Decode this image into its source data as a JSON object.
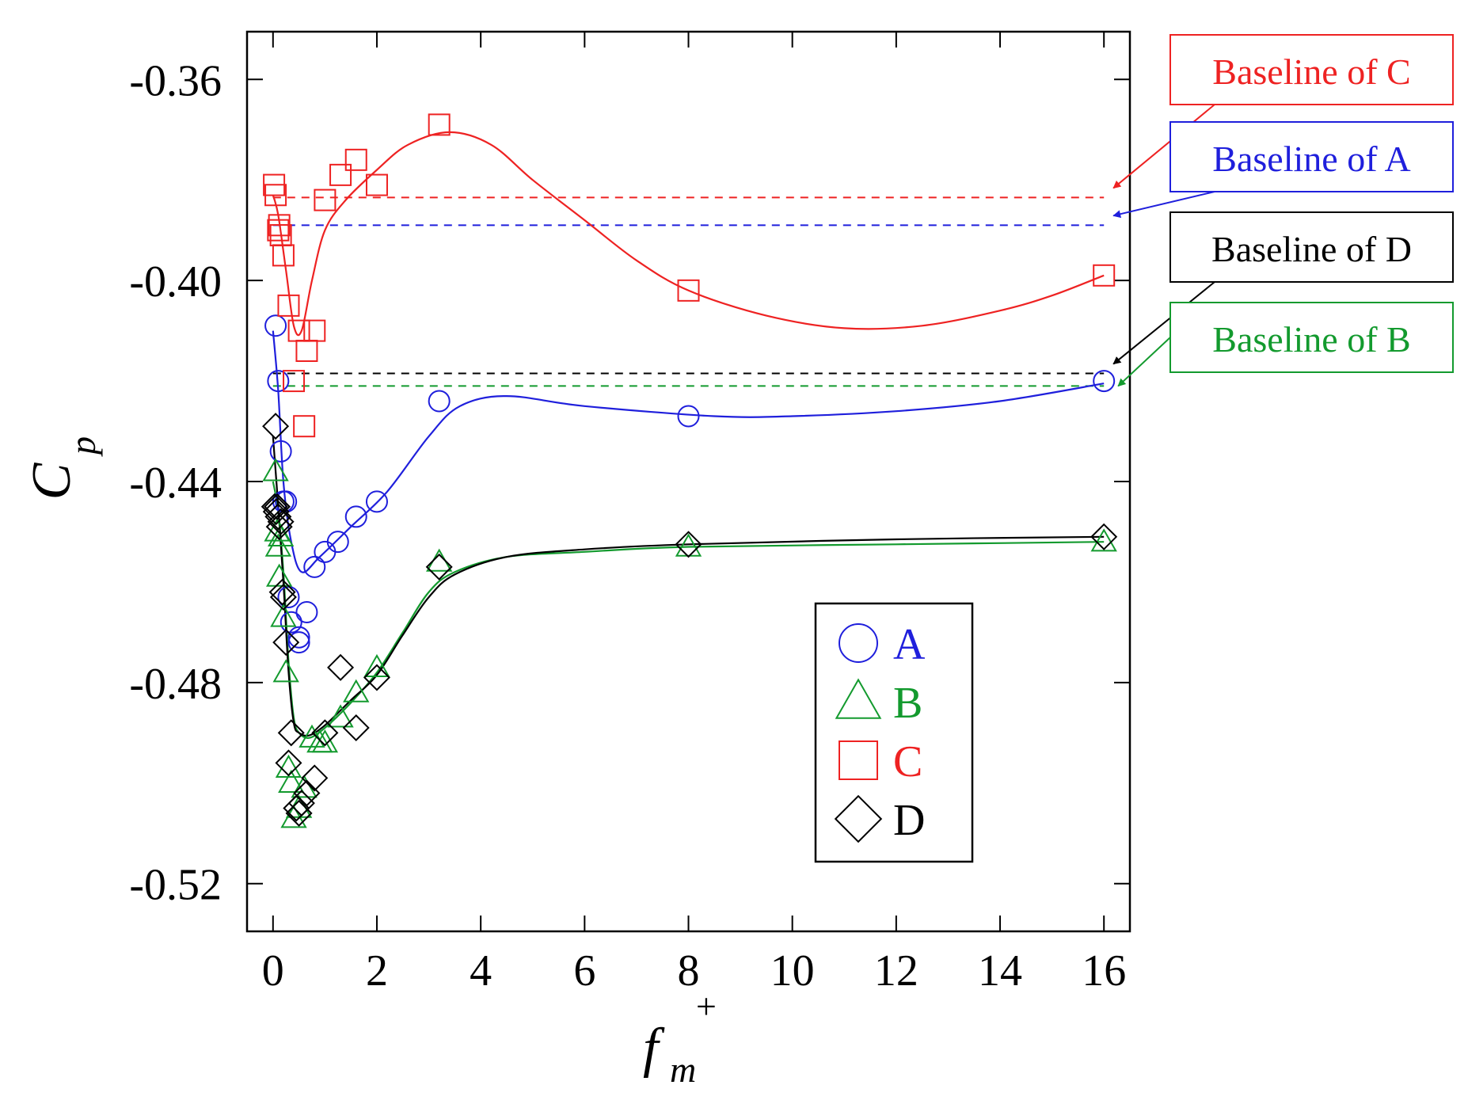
{
  "chart_data": {
    "type": "scatter",
    "title": "",
    "xlabel": {
      "main": "f",
      "sub": "m",
      "sup": "+"
    },
    "ylabel": {
      "main": "C",
      "sub": "p"
    },
    "xlim": [
      -0.5,
      16.5
    ],
    "ylim": [
      -0.5295,
      -0.3505
    ],
    "xticks": [
      0,
      2,
      4,
      6,
      8,
      10,
      12,
      14,
      16
    ],
    "xtick_labels": [
      "0",
      "2",
      "4",
      "6",
      "8",
      "10",
      "12",
      "14",
      "16"
    ],
    "yticks": [
      -0.36,
      -0.4,
      -0.44,
      -0.48,
      -0.52
    ],
    "ytick_labels": [
      "-0.36",
      "-0.40",
      "-0.44",
      "-0.48",
      "-0.52"
    ],
    "grid": false,
    "legend_position": "lower-right",
    "colors": {
      "A": "#1f1fdc",
      "B": "#139a2e",
      "C": "#ee2222",
      "D": "#000000"
    },
    "series": [
      {
        "name": "A",
        "marker": "circle",
        "color": "#1f1fdc",
        "points": [
          [
            0.05,
            -0.409
          ],
          [
            0.1,
            -0.42
          ],
          [
            0.15,
            -0.434
          ],
          [
            0.2,
            -0.444
          ],
          [
            0.25,
            -0.444
          ],
          [
            0.3,
            -0.463
          ],
          [
            0.35,
            -0.468
          ],
          [
            0.5,
            -0.471
          ],
          [
            0.5,
            -0.472
          ],
          [
            0.65,
            -0.466
          ],
          [
            0.8,
            -0.457
          ],
          [
            1.0,
            -0.454
          ],
          [
            1.25,
            -0.452
          ],
          [
            1.6,
            -0.447
          ],
          [
            2.0,
            -0.444
          ],
          [
            3.2,
            -0.424
          ],
          [
            8.0,
            -0.427
          ],
          [
            16.0,
            -0.42
          ]
        ],
        "fit": [
          [
            0.0,
            -0.41
          ],
          [
            0.1,
            -0.422
          ],
          [
            0.2,
            -0.44
          ],
          [
            0.35,
            -0.452
          ],
          [
            0.55,
            -0.458
          ],
          [
            0.9,
            -0.455
          ],
          [
            1.5,
            -0.449
          ],
          [
            2.2,
            -0.442
          ],
          [
            3.0,
            -0.431
          ],
          [
            3.6,
            -0.425
          ],
          [
            4.5,
            -0.423
          ],
          [
            6.0,
            -0.425
          ],
          [
            8.5,
            -0.427
          ],
          [
            10.0,
            -0.427
          ],
          [
            12.0,
            -0.426
          ],
          [
            14.0,
            -0.424
          ],
          [
            16.0,
            -0.4205
          ]
        ]
      },
      {
        "name": "B",
        "marker": "triangle",
        "color": "#139a2e",
        "points": [
          [
            0.05,
            -0.438
          ],
          [
            0.08,
            -0.45
          ],
          [
            0.1,
            -0.453
          ],
          [
            0.12,
            -0.459
          ],
          [
            0.15,
            -0.451
          ],
          [
            0.2,
            -0.467
          ],
          [
            0.25,
            -0.478
          ],
          [
            0.3,
            -0.497
          ],
          [
            0.35,
            -0.5
          ],
          [
            0.4,
            -0.507
          ],
          [
            0.5,
            -0.505
          ],
          [
            0.6,
            -0.501
          ],
          [
            0.75,
            -0.491
          ],
          [
            0.9,
            -0.492
          ],
          [
            1.0,
            -0.492
          ],
          [
            1.3,
            -0.487
          ],
          [
            1.6,
            -0.482
          ],
          [
            2.0,
            -0.477
          ],
          [
            3.2,
            -0.456
          ],
          [
            8.0,
            -0.453
          ],
          [
            16.0,
            -0.452
          ]
        ],
        "fit": [
          [
            0.0,
            -0.44
          ],
          [
            0.1,
            -0.446
          ],
          [
            0.2,
            -0.458
          ],
          [
            0.3,
            -0.476
          ],
          [
            0.4,
            -0.487
          ],
          [
            0.5,
            -0.49
          ],
          [
            0.7,
            -0.491
          ],
          [
            1.0,
            -0.489
          ],
          [
            1.5,
            -0.484
          ],
          [
            2.0,
            -0.478
          ],
          [
            2.5,
            -0.47
          ],
          [
            3.0,
            -0.462
          ],
          [
            3.5,
            -0.458
          ],
          [
            4.5,
            -0.455
          ],
          [
            6.0,
            -0.454
          ],
          [
            8.0,
            -0.453
          ],
          [
            12.0,
            -0.4525
          ],
          [
            16.0,
            -0.452
          ]
        ]
      },
      {
        "name": "C",
        "marker": "square",
        "color": "#ee2222",
        "points": [
          [
            0.02,
            -0.381
          ],
          [
            0.05,
            -0.383
          ],
          [
            0.1,
            -0.39
          ],
          [
            0.12,
            -0.389
          ],
          [
            0.15,
            -0.391
          ],
          [
            0.2,
            -0.395
          ],
          [
            0.3,
            -0.405
          ],
          [
            0.4,
            -0.42
          ],
          [
            0.5,
            -0.41
          ],
          [
            0.6,
            -0.429
          ],
          [
            0.65,
            -0.414
          ],
          [
            0.8,
            -0.41
          ],
          [
            1.0,
            -0.384
          ],
          [
            1.3,
            -0.379
          ],
          [
            1.6,
            -0.376
          ],
          [
            2.0,
            -0.381
          ],
          [
            3.2,
            -0.369
          ],
          [
            8.0,
            -0.402
          ],
          [
            16.0,
            -0.399
          ]
        ],
        "fit": [
          [
            0.0,
            -0.383
          ],
          [
            0.1,
            -0.387
          ],
          [
            0.25,
            -0.398
          ],
          [
            0.4,
            -0.409
          ],
          [
            0.55,
            -0.41
          ],
          [
            0.75,
            -0.4
          ],
          [
            1.0,
            -0.39
          ],
          [
            1.4,
            -0.384
          ],
          [
            2.0,
            -0.378
          ],
          [
            2.6,
            -0.373
          ],
          [
            3.4,
            -0.3705
          ],
          [
            4.2,
            -0.373
          ],
          [
            5.0,
            -0.38
          ],
          [
            6.0,
            -0.388
          ],
          [
            7.0,
            -0.396
          ],
          [
            8.0,
            -0.402
          ],
          [
            9.5,
            -0.407
          ],
          [
            11.0,
            -0.4095
          ],
          [
            12.5,
            -0.409
          ],
          [
            14.0,
            -0.406
          ],
          [
            15.0,
            -0.403
          ],
          [
            16.0,
            -0.399
          ]
        ]
      },
      {
        "name": "D",
        "marker": "diamond",
        "color": "#000000",
        "points": [
          [
            0.03,
            -0.445
          ],
          [
            0.05,
            -0.429
          ],
          [
            0.06,
            -0.446
          ],
          [
            0.08,
            -0.445
          ],
          [
            0.1,
            -0.447
          ],
          [
            0.12,
            -0.449
          ],
          [
            0.15,
            -0.448
          ],
          [
            0.18,
            -0.462
          ],
          [
            0.2,
            -0.463
          ],
          [
            0.25,
            -0.472
          ],
          [
            0.3,
            -0.496
          ],
          [
            0.35,
            -0.49
          ],
          [
            0.45,
            -0.505
          ],
          [
            0.5,
            -0.506
          ],
          [
            0.55,
            -0.504
          ],
          [
            0.65,
            -0.502
          ],
          [
            0.8,
            -0.499
          ],
          [
            1.0,
            -0.49
          ],
          [
            1.3,
            -0.477
          ],
          [
            1.6,
            -0.489
          ],
          [
            2.0,
            -0.479
          ],
          [
            3.2,
            -0.457
          ],
          [
            8.0,
            -0.4525
          ],
          [
            16.0,
            -0.451
          ]
        ],
        "fit": [
          [
            0.0,
            -0.431
          ],
          [
            0.1,
            -0.445
          ],
          [
            0.2,
            -0.46
          ],
          [
            0.3,
            -0.478
          ],
          [
            0.4,
            -0.488
          ],
          [
            0.5,
            -0.49
          ],
          [
            0.7,
            -0.4905
          ],
          [
            1.0,
            -0.4885
          ],
          [
            1.5,
            -0.4835
          ],
          [
            2.0,
            -0.4785
          ],
          [
            2.5,
            -0.4705
          ],
          [
            3.0,
            -0.463
          ],
          [
            3.5,
            -0.4585
          ],
          [
            4.5,
            -0.455
          ],
          [
            6.0,
            -0.4535
          ],
          [
            8.0,
            -0.4525
          ],
          [
            12.0,
            -0.4515
          ],
          [
            16.0,
            -0.451
          ]
        ]
      }
    ],
    "baselines": [
      {
        "name": "Baseline of C",
        "series": "C",
        "value": -0.3835,
        "color": "#ee2222",
        "x_range": [
          0,
          16
        ]
      },
      {
        "name": "Baseline of A",
        "series": "A",
        "value": -0.389,
        "color": "#1f1fdc",
        "x_range": [
          0,
          16
        ]
      },
      {
        "name": "Baseline of D",
        "series": "D",
        "value": -0.4185,
        "color": "#000000",
        "x_range": [
          0,
          16
        ]
      },
      {
        "name": "Baseline of B",
        "series": "B",
        "value": -0.421,
        "color": "#139a2e",
        "x_range": [
          0,
          16
        ]
      }
    ]
  }
}
